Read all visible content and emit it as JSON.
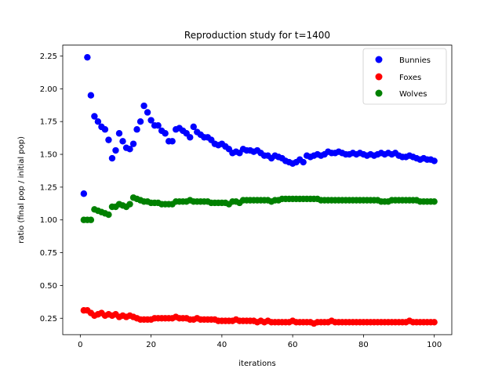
{
  "chart_data": {
    "type": "scatter",
    "title": "Reproduction study for t=1400",
    "xlabel": "iterations",
    "ylabel": "ratio (final pop / initial pop)",
    "xlim": [
      -4.95,
      104.95
    ],
    "ylim": [
      0.125,
      2.333
    ],
    "xticks": [
      0,
      20,
      40,
      60,
      80,
      100
    ],
    "xtick_labels": [
      "0",
      "20",
      "40",
      "60",
      "80",
      "100"
    ],
    "yticks": [
      0.25,
      0.5,
      0.75,
      1.0,
      1.25,
      1.5,
      1.75,
      2.0,
      2.25
    ],
    "ytick_labels": [
      "0.25",
      "0.50",
      "0.75",
      "1.00",
      "1.25",
      "1.50",
      "1.75",
      "2.00",
      "2.25"
    ],
    "grid": false,
    "legend_position": "top-right",
    "x": [
      1,
      2,
      3,
      4,
      5,
      6,
      7,
      8,
      9,
      10,
      11,
      12,
      13,
      14,
      15,
      16,
      17,
      18,
      19,
      20,
      21,
      22,
      23,
      24,
      25,
      26,
      27,
      28,
      29,
      30,
      31,
      32,
      33,
      34,
      35,
      36,
      37,
      38,
      39,
      40,
      41,
      42,
      43,
      44,
      45,
      46,
      47,
      48,
      49,
      50,
      51,
      52,
      53,
      54,
      55,
      56,
      57,
      58,
      59,
      60,
      61,
      62,
      63,
      64,
      65,
      66,
      67,
      68,
      69,
      70,
      71,
      72,
      73,
      74,
      75,
      76,
      77,
      78,
      79,
      80,
      81,
      82,
      83,
      84,
      85,
      86,
      87,
      88,
      89,
      90,
      91,
      92,
      93,
      94,
      95,
      96,
      97,
      98,
      99,
      100
    ],
    "series": [
      {
        "name": "Bunnies",
        "color": "#0000ff",
        "values": [
          1.2,
          2.24,
          1.95,
          1.79,
          1.75,
          1.71,
          1.69,
          1.61,
          1.47,
          1.53,
          1.66,
          1.6,
          1.55,
          1.54,
          1.58,
          1.69,
          1.75,
          1.87,
          1.82,
          1.76,
          1.72,
          1.72,
          1.68,
          1.66,
          1.6,
          1.6,
          1.69,
          1.7,
          1.68,
          1.66,
          1.63,
          1.71,
          1.67,
          1.65,
          1.63,
          1.63,
          1.61,
          1.58,
          1.57,
          1.58,
          1.56,
          1.54,
          1.51,
          1.52,
          1.51,
          1.54,
          1.53,
          1.53,
          1.52,
          1.53,
          1.51,
          1.49,
          1.49,
          1.47,
          1.49,
          1.48,
          1.47,
          1.45,
          1.44,
          1.43,
          1.44,
          1.46,
          1.44,
          1.49,
          1.48,
          1.49,
          1.5,
          1.49,
          1.5,
          1.52,
          1.51,
          1.51,
          1.52,
          1.51,
          1.5,
          1.5,
          1.51,
          1.5,
          1.51,
          1.5,
          1.49,
          1.5,
          1.49,
          1.5,
          1.51,
          1.5,
          1.51,
          1.5,
          1.51,
          1.49,
          1.48,
          1.48,
          1.49,
          1.48,
          1.47,
          1.46,
          1.47,
          1.46,
          1.46,
          1.45
        ]
      },
      {
        "name": "Foxes",
        "color": "#ff0000",
        "values": [
          0.31,
          0.31,
          0.29,
          0.27,
          0.28,
          0.29,
          0.27,
          0.28,
          0.27,
          0.28,
          0.26,
          0.27,
          0.26,
          0.27,
          0.26,
          0.25,
          0.24,
          0.24,
          0.24,
          0.24,
          0.25,
          0.25,
          0.25,
          0.25,
          0.25,
          0.25,
          0.26,
          0.25,
          0.25,
          0.25,
          0.24,
          0.24,
          0.25,
          0.24,
          0.24,
          0.24,
          0.24,
          0.24,
          0.23,
          0.23,
          0.23,
          0.23,
          0.23,
          0.24,
          0.23,
          0.23,
          0.23,
          0.23,
          0.23,
          0.22,
          0.23,
          0.22,
          0.23,
          0.22,
          0.22,
          0.22,
          0.22,
          0.22,
          0.22,
          0.23,
          0.22,
          0.22,
          0.22,
          0.22,
          0.22,
          0.21,
          0.22,
          0.22,
          0.22,
          0.22,
          0.23,
          0.22,
          0.22,
          0.22,
          0.22,
          0.22,
          0.22,
          0.22,
          0.22,
          0.22,
          0.22,
          0.22,
          0.22,
          0.22,
          0.22,
          0.22,
          0.22,
          0.22,
          0.22,
          0.22,
          0.22,
          0.22,
          0.23,
          0.22,
          0.22,
          0.22,
          0.22,
          0.22,
          0.22,
          0.22
        ]
      },
      {
        "name": "Wolves",
        "color": "#008000",
        "values": [
          1.0,
          1.0,
          1.0,
          1.08,
          1.07,
          1.06,
          1.05,
          1.04,
          1.1,
          1.1,
          1.12,
          1.11,
          1.1,
          1.12,
          1.17,
          1.16,
          1.15,
          1.14,
          1.14,
          1.13,
          1.13,
          1.13,
          1.12,
          1.12,
          1.12,
          1.12,
          1.14,
          1.14,
          1.14,
          1.14,
          1.15,
          1.14,
          1.14,
          1.14,
          1.14,
          1.14,
          1.13,
          1.13,
          1.13,
          1.13,
          1.13,
          1.12,
          1.14,
          1.14,
          1.13,
          1.15,
          1.15,
          1.15,
          1.15,
          1.15,
          1.15,
          1.15,
          1.15,
          1.14,
          1.15,
          1.15,
          1.16,
          1.16,
          1.16,
          1.16,
          1.16,
          1.16,
          1.16,
          1.16,
          1.16,
          1.16,
          1.16,
          1.15,
          1.15,
          1.15,
          1.15,
          1.15,
          1.15,
          1.15,
          1.15,
          1.15,
          1.15,
          1.15,
          1.15,
          1.15,
          1.15,
          1.15,
          1.15,
          1.15,
          1.14,
          1.14,
          1.14,
          1.15,
          1.15,
          1.15,
          1.15,
          1.15,
          1.15,
          1.15,
          1.15,
          1.14,
          1.14,
          1.14,
          1.14,
          1.14
        ]
      }
    ]
  }
}
